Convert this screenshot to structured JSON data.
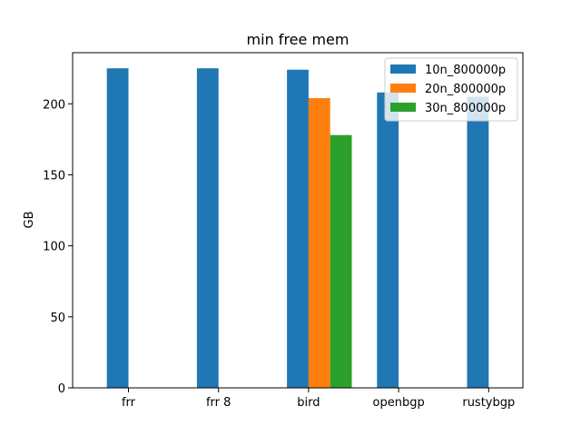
{
  "chart_data": {
    "type": "bar",
    "title": "min free mem",
    "xlabel": "",
    "ylabel": "GB",
    "categories": [
      "frr",
      "frr 8",
      "bird",
      "openbgp",
      "rustybgp"
    ],
    "series": [
      {
        "name": "10n_800000p",
        "color": "#1f77b4",
        "values": [
          225,
          225,
          224,
          208,
          205
        ]
      },
      {
        "name": "20n_800000p",
        "color": "#ff7f0e",
        "values": [
          null,
          null,
          204,
          null,
          null
        ]
      },
      {
        "name": "30n_800000p",
        "color": "#2ca02c",
        "values": [
          null,
          null,
          178,
          null,
          null
        ]
      }
    ],
    "ylim": [
      0,
      236
    ],
    "yticks": [
      0,
      50,
      100,
      150,
      200
    ],
    "grid": false,
    "legend_position": "top-right"
  }
}
